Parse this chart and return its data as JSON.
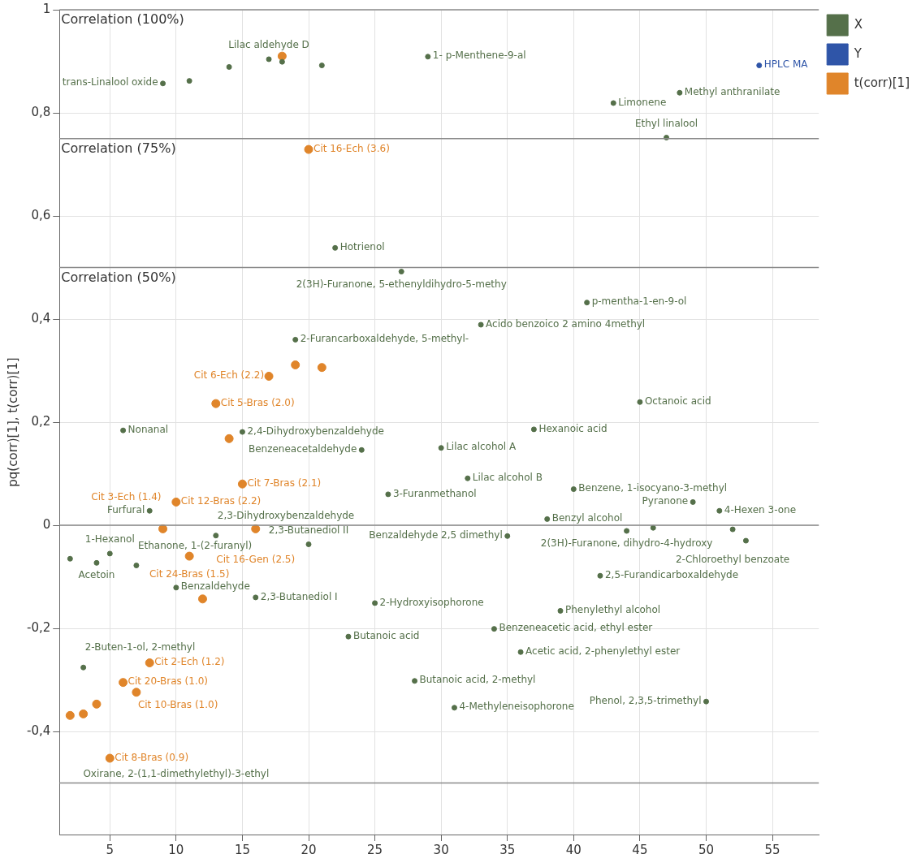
{
  "chart_data": {
    "type": "scatter",
    "ylabel": "pq(corr)[1], t(corr)[1]",
    "xlim": [
      1.2,
      58.5
    ],
    "xticks": [
      5,
      10,
      15,
      20,
      25,
      30,
      35,
      40,
      45,
      50,
      55
    ],
    "ylim": [
      -0.6,
      1
    ],
    "yticks": [
      {
        "value": -0.4,
        "label": "-0,4"
      },
      {
        "value": -0.2,
        "label": "-0,2"
      },
      0,
      {
        "value": 0.2,
        "label": "0,2"
      },
      {
        "value": 0.4,
        "label": "0,4"
      },
      {
        "value": 0.6,
        "label": "0,6"
      },
      {
        "value": 0.8,
        "label": "0,8"
      },
      1
    ],
    "grid": true,
    "legend": "top right",
    "marker": "circle",
    "ref_lines": [
      {
        "axis": "y",
        "value": 1,
        "label": "Correlation (100%)"
      },
      {
        "axis": "y",
        "value": 0.75,
        "label": "Correlation (75%)"
      },
      {
        "axis": "y",
        "value": 0.5,
        "label": "Correlation (50%)"
      },
      {
        "axis": "y",
        "value": 0,
        "label": null
      },
      {
        "axis": "y",
        "value": -0.5,
        "label": null
      }
    ],
    "annotations": [
      {
        "text": "trans-Linalool oxide",
        "x": 9,
        "y": 0.857
      },
      {
        "text": "Lilac aldehyde D",
        "x": 17,
        "y": 0.904
      },
      {
        "text": "1- p-Menthene-9-al",
        "x": 29,
        "y": 0.909
      },
      {
        "text": "Limonene",
        "x": 43,
        "y": 0.819
      },
      {
        "text": "Methyl anthranilate",
        "x": 48,
        "y": 0.839
      },
      {
        "text": "Ethyl linalool",
        "x": 47,
        "y": 0.752
      },
      {
        "text": "HPLC MA",
        "x": 54,
        "y": 0.892
      },
      {
        "text": "Hotrienol",
        "x": 22,
        "y": 0.538
      },
      {
        "text": "2(3H)-Furanone, 5-ethenyldihydro-5-methy",
        "x": 27,
        "y": 0.492
      },
      {
        "text": "p-mentha-1-en-9-ol",
        "x": 41,
        "y": 0.432
      },
      {
        "text": "Acido benzoico 2 amino 4methyl",
        "x": 33,
        "y": 0.389
      },
      {
        "text": "2-Furancarboxaldehyde, 5-methyl-",
        "x": 19,
        "y": 0.36
      },
      {
        "text": "Octanoic acid",
        "x": 45,
        "y": 0.239
      },
      {
        "text": "Hexanoic acid",
        "x": 37,
        "y": 0.186
      },
      {
        "text": "Nonanal",
        "x": 6,
        "y": 0.184
      },
      {
        "text": "2,4-Dihydroxybenzaldehyde",
        "x": 15,
        "y": 0.181
      },
      {
        "text": "Benzeneacetaldehyde",
        "x": 24,
        "y": 0.146
      },
      {
        "text": "Lilac alcohol A",
        "x": 30,
        "y": 0.15
      },
      {
        "text": "Lilac alcohol B",
        "x": 32,
        "y": 0.091
      },
      {
        "text": "3-Furanmethanol",
        "x": 26,
        "y": 0.06
      },
      {
        "text": "Benzene, 1-isocyano-3-methyl",
        "x": 40,
        "y": 0.07
      },
      {
        "text": "Pyranone",
        "x": 49,
        "y": 0.045
      },
      {
        "text": "4-Hexen 3-one",
        "x": 51,
        "y": 0.028
      },
      {
        "text": "Benzyl alcohol",
        "x": 38,
        "y": 0.012
      },
      {
        "text": "Benzaldehyde 2,5 dimethyl",
        "x": 35,
        "y": -0.021
      },
      {
        "text": "2(3H)-Furanone, dihydro-4-hydroxy",
        "x": 44,
        "y": -0.011
      },
      {
        "text": "2-Chloroethyl benzoate",
        "x": 52,
        "y": -0.008
      },
      {
        "text": "2,5-Furandicarboxaldehyde",
        "x": 42,
        "y": -0.098
      },
      {
        "text": "Phenylethyl alcohol",
        "x": 39,
        "y": -0.166
      },
      {
        "text": "Benzeneacetic acid, ethyl ester",
        "x": 34,
        "y": -0.201
      },
      {
        "text": "Acetic acid, 2-phenylethyl ester",
        "x": 36,
        "y": -0.246
      },
      {
        "text": "Phenol, 2,3,5-trimethyl",
        "x": 50,
        "y": -0.342
      },
      {
        "text": "4-Methyleneisophorone",
        "x": 31,
        "y": -0.354
      },
      {
        "text": "Butanoic acid, 2-methyl",
        "x": 28,
        "y": -0.302
      },
      {
        "text": "Butanoic acid",
        "x": 23,
        "y": -0.216
      },
      {
        "text": "2-Hydroxyisophorone",
        "x": 25,
        "y": -0.151
      },
      {
        "text": "2,3-Butanediol I",
        "x": 16,
        "y": -0.14
      },
      {
        "text": "Benzaldehyde",
        "x": 10,
        "y": -0.121
      },
      {
        "text": "Ethanone, 1-(2-furanyl)",
        "x": 7,
        "y": -0.078
      },
      {
        "text": "Acetoin",
        "x": 4,
        "y": -0.073
      },
      {
        "text": "1-Hexanol",
        "x": 5,
        "y": -0.055
      },
      {
        "text": "2,3-Butanediol II",
        "x": 20,
        "y": -0.037
      },
      {
        "text": "2,3-Dihydroxybenzaldehyde",
        "x": 13,
        "y": -0.02
      },
      {
        "text": "Furfural",
        "x": 8,
        "y": 0.028
      },
      {
        "text": "2-Buten-1-ol, 2-methyl",
        "x": 3,
        "y": -0.276
      },
      {
        "text": "Cit 16-Ech (3.6)",
        "x": 20,
        "y": 0.729
      },
      {
        "text": "Cit 6-Ech (2.2)",
        "x": 17,
        "y": 0.289
      },
      {
        "text": "Cit 5-Bras (2.0)",
        "x": 13,
        "y": 0.236
      },
      {
        "text": "Cit 7-Bras (2.1)",
        "x": 15,
        "y": 0.08
      },
      {
        "text": "Cit 12-Bras (2.2)",
        "x": 10,
        "y": 0.045
      },
      {
        "text": "Cit 3-Ech (1.4)",
        "x": 9,
        "y": -0.007
      },
      {
        "text": "Cit 16-Gen (2.5)",
        "x": 16,
        "y": -0.007
      },
      {
        "text": "Cit 24-Bras (1.5)",
        "x": 11,
        "y": -0.06
      },
      {
        "text": "Cit 2-Ech (1.2)",
        "x": 8,
        "y": -0.267
      },
      {
        "text": "Cit 20-Bras (1.0)",
        "x": 6,
        "y": -0.305
      },
      {
        "text": "Cit 10-Bras (1.0)",
        "x": 7,
        "y": -0.324
      },
      {
        "text": "Cit 8-Bras (0.9)",
        "x": 5,
        "y": -0.452
      },
      {
        "text": "Oxirane, 2-(1,1-dimethylethyl)-3-ethyl",
        "x": 10,
        "y": -0.5
      }
    ],
    "series": [
      {
        "name": "X",
        "color": "#55704a",
        "x": [
          9,
          11,
          14,
          17,
          18,
          21,
          29,
          43,
          48,
          47,
          22,
          27,
          41,
          33,
          19,
          45,
          37,
          6,
          15,
          24,
          30,
          32,
          26,
          40,
          49,
          51,
          38,
          35,
          44,
          46,
          52,
          53,
          42,
          39,
          34,
          36,
          50,
          31,
          28,
          23,
          25,
          16,
          10,
          7,
          2,
          4,
          5,
          20,
          13,
          8,
          3
        ],
        "values": [
          0.857,
          0.862,
          0.889,
          0.904,
          0.899,
          0.892,
          0.909,
          0.819,
          0.839,
          0.752,
          0.538,
          0.492,
          0.432,
          0.389,
          0.36,
          0.239,
          0.186,
          0.184,
          0.181,
          0.146,
          0.15,
          0.091,
          0.06,
          0.07,
          0.045,
          0.028,
          0.012,
          -0.021,
          -0.011,
          -0.005,
          -0.008,
          -0.03,
          -0.098,
          -0.166,
          -0.201,
          -0.246,
          -0.342,
          -0.354,
          -0.302,
          -0.216,
          -0.151,
          -0.14,
          -0.121,
          -0.078,
          -0.065,
          -0.073,
          -0.055,
          -0.037,
          -0.02,
          0.028,
          -0.276
        ]
      },
      {
        "name": "Y",
        "color": "#2f55a8",
        "x": [
          54
        ],
        "values": [
          0.892
        ]
      },
      {
        "name": "t(corr)[1]",
        "color": "#e0852a",
        "x": [
          18,
          20,
          19,
          21,
          17,
          13,
          14,
          15,
          10,
          9,
          16,
          11,
          12,
          8,
          6,
          7,
          4,
          3,
          2,
          5
        ],
        "values": [
          0.91,
          0.729,
          0.311,
          0.306,
          0.289,
          0.236,
          0.168,
          0.08,
          0.045,
          -0.007,
          -0.007,
          -0.06,
          -0.143,
          -0.267,
          -0.305,
          -0.324,
          -0.347,
          -0.366,
          -0.369,
          -0.452
        ]
      }
    ]
  }
}
